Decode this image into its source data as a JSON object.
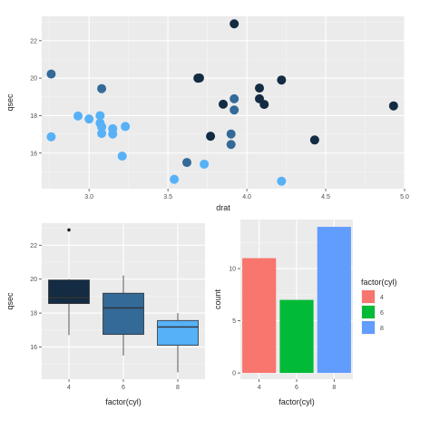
{
  "chart_data": [
    {
      "type": "scatter",
      "xlabel": "drat",
      "ylabel": "qsec",
      "xlim": [
        2.7,
        5.0
      ],
      "ylim": [
        14.1,
        23.3
      ],
      "xticks": [
        "3.0",
        "3.5",
        "4.0",
        "4.5",
        "5.0"
      ],
      "yticks": [
        "16",
        "18",
        "20",
        "22"
      ],
      "grid": true,
      "legend": "none",
      "colors": {
        "dark": "#132b43",
        "mid": "#336a98",
        "light": "#56b1f7"
      },
      "points": [
        {
          "x": 2.76,
          "y": 20.22,
          "shade": "mid"
        },
        {
          "x": 2.76,
          "y": 16.87,
          "shade": "light"
        },
        {
          "x": 2.93,
          "y": 17.98,
          "shade": "light"
        },
        {
          "x": 3.0,
          "y": 17.82,
          "shade": "light"
        },
        {
          "x": 3.07,
          "y": 18.0,
          "shade": "light"
        },
        {
          "x": 3.07,
          "y": 17.6,
          "shade": "light"
        },
        {
          "x": 3.08,
          "y": 17.4,
          "shade": "light"
        },
        {
          "x": 3.08,
          "y": 17.05,
          "shade": "light"
        },
        {
          "x": 3.08,
          "y": 19.44,
          "shade": "mid"
        },
        {
          "x": 3.15,
          "y": 17.3,
          "shade": "light"
        },
        {
          "x": 3.15,
          "y": 17.02,
          "shade": "light"
        },
        {
          "x": 3.21,
          "y": 15.84,
          "shade": "light"
        },
        {
          "x": 3.23,
          "y": 17.42,
          "shade": "light"
        },
        {
          "x": 3.54,
          "y": 14.6,
          "shade": "light"
        },
        {
          "x": 3.62,
          "y": 15.5,
          "shade": "mid"
        },
        {
          "x": 3.69,
          "y": 20.0,
          "shade": "dark"
        },
        {
          "x": 3.7,
          "y": 20.01,
          "shade": "dark"
        },
        {
          "x": 3.73,
          "y": 15.41,
          "shade": "light"
        },
        {
          "x": 3.77,
          "y": 16.9,
          "shade": "dark"
        },
        {
          "x": 3.85,
          "y": 18.61,
          "shade": "dark"
        },
        {
          "x": 3.9,
          "y": 17.02,
          "shade": "mid"
        },
        {
          "x": 3.9,
          "y": 16.46,
          "shade": "mid"
        },
        {
          "x": 3.92,
          "y": 22.9,
          "shade": "dark"
        },
        {
          "x": 3.92,
          "y": 18.9,
          "shade": "mid"
        },
        {
          "x": 3.92,
          "y": 18.3,
          "shade": "mid"
        },
        {
          "x": 4.08,
          "y": 19.47,
          "shade": "dark"
        },
        {
          "x": 4.08,
          "y": 18.9,
          "shade": "dark"
        },
        {
          "x": 4.11,
          "y": 18.6,
          "shade": "dark"
        },
        {
          "x": 4.22,
          "y": 19.9,
          "shade": "dark"
        },
        {
          "x": 4.22,
          "y": 14.5,
          "shade": "light"
        },
        {
          "x": 4.43,
          "y": 16.7,
          "shade": "dark"
        },
        {
          "x": 4.93,
          "y": 18.52,
          "shade": "dark"
        }
      ]
    },
    {
      "type": "box",
      "xlabel": "factor(cyl)",
      "ylabel": "qsec",
      "categories": [
        "4",
        "6",
        "8"
      ],
      "ylim": [
        14.1,
        23.3
      ],
      "yticks": [
        "16",
        "18",
        "20",
        "22"
      ],
      "grid": true,
      "legend": "none",
      "boxes": [
        {
          "category": "4",
          "min": 16.7,
          "q1": 18.56,
          "median": 18.9,
          "q3": 19.95,
          "max": 20.0,
          "outliers": [
            22.9
          ],
          "fill": "#132b43"
        },
        {
          "category": "6",
          "min": 15.5,
          "q1": 16.74,
          "median": 18.3,
          "q3": 19.17,
          "max": 20.22,
          "outliers": [],
          "fill": "#336a98"
        },
        {
          "category": "8",
          "min": 14.5,
          "q1": 16.1,
          "median": 17.18,
          "q3": 17.56,
          "max": 18.0,
          "outliers": [],
          "fill": "#56b1f7"
        }
      ]
    },
    {
      "type": "bar",
      "xlabel": "factor(cyl)",
      "ylabel": "count",
      "categories": [
        "4",
        "6",
        "8"
      ],
      "values": [
        11,
        7,
        14
      ],
      "ylim": [
        0,
        14.7
      ],
      "yticks": [
        "0",
        "5",
        "10"
      ],
      "grid": true,
      "legend": "right",
      "legend_title": "factor(cyl)",
      "legend_entries": [
        "4",
        "6",
        "8"
      ],
      "colors": [
        "#f8766d",
        "#00ba38",
        "#619cff"
      ]
    }
  ]
}
